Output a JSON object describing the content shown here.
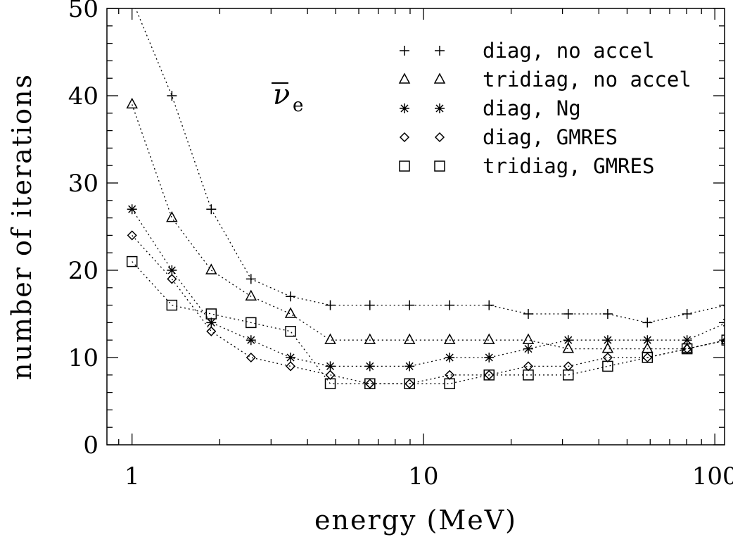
{
  "chart_data": {
    "type": "line",
    "xlabel": "energy (MeV)",
    "ylabel": "number of iterations",
    "xscale": "log",
    "xlim": [
      0.82,
      108
    ],
    "ylim": [
      0,
      50
    ],
    "xticks": [
      1,
      10,
      100
    ],
    "xtick_labels": [
      "1",
      "10",
      "100"
    ],
    "yticks": [
      0,
      10,
      20,
      30,
      40,
      50
    ],
    "ytick_labels": [
      "0",
      "10",
      "20",
      "30",
      "40",
      "50"
    ],
    "grid": false,
    "legend_position": "top-right",
    "line_style": "dotted",
    "annotation": {
      "symbol": "ν",
      "subscript": "e"
    },
    "x": [
      1.0,
      1.37,
      1.87,
      2.56,
      3.5,
      4.79,
      6.55,
      8.96,
      12.3,
      16.8,
      22.9,
      31.4,
      42.9,
      58.7,
      80.3,
      110.0
    ],
    "series": [
      {
        "name": "diag, no accel",
        "marker": "plus",
        "values": [
          51,
          40,
          27,
          19,
          17,
          16,
          16,
          16,
          16,
          16,
          15,
          15,
          15,
          14,
          15,
          16
        ]
      },
      {
        "name": "tridiag, no accel",
        "marker": "triangle",
        "values": [
          39,
          26,
          20,
          17,
          15,
          12,
          12,
          12,
          12,
          12,
          12,
          11,
          11,
          11,
          11,
          12
        ]
      },
      {
        "name": "diag, Ng",
        "marker": "asterisk",
        "values": [
          27,
          20,
          14,
          12,
          10,
          9,
          9,
          9,
          10,
          10,
          11,
          12,
          12,
          12,
          12,
          14
        ]
      },
      {
        "name": "diag, GMRES",
        "marker": "diamond",
        "values": [
          24,
          19,
          13,
          10,
          9,
          8,
          7,
          7,
          8,
          8,
          9,
          9,
          10,
          10,
          11,
          12
        ]
      },
      {
        "name": "tridiag, GMRES",
        "marker": "square",
        "values": [
          21,
          16,
          15,
          14,
          13,
          7,
          7,
          7,
          7,
          8,
          8,
          8,
          9,
          10,
          11,
          12
        ]
      }
    ]
  }
}
